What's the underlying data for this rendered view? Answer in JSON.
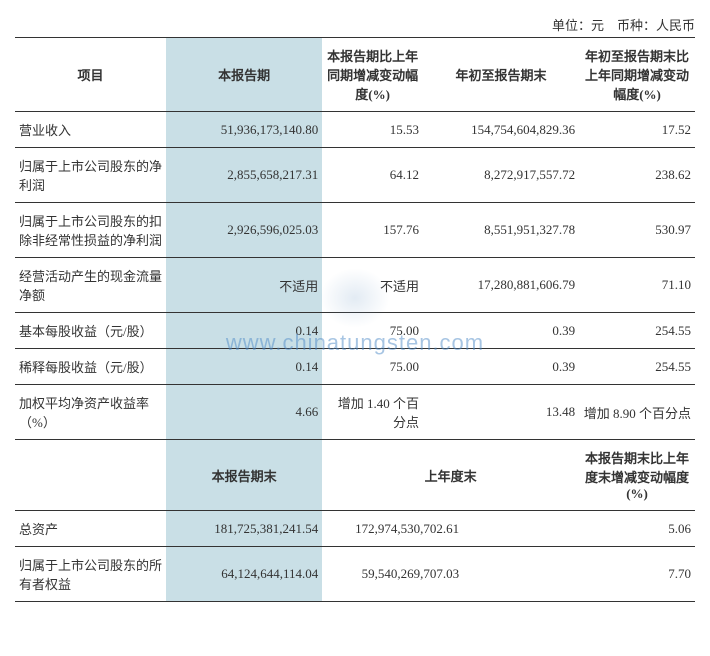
{
  "unit_line": "单位：元　币种：人民币",
  "section1": {
    "headers": {
      "col1": "项目",
      "col2": "本报告期",
      "col3": "本报告期比上年同期增减变动幅度(%)",
      "col4": "年初至报告期末",
      "col5": "年初至报告期末比上年同期增减变动幅度(%)"
    },
    "rows": [
      {
        "label": "营业收入",
        "c2": "51,936,173,140.80",
        "c3": "15.53",
        "c4": "154,754,604,829.36",
        "c5": "17.52"
      },
      {
        "label": "归属于上市公司股东的净利润",
        "c2": "2,855,658,217.31",
        "c3": "64.12",
        "c4": "8,272,917,557.72",
        "c5": "238.62"
      },
      {
        "label": "归属于上市公司股东的扣除非经常性损益的净利润",
        "c2": "2,926,596,025.03",
        "c3": "157.76",
        "c4": "8,551,951,327.78",
        "c5": "530.97"
      },
      {
        "label": "经营活动产生的现金流量净额",
        "c2": "不适用",
        "c3": "不适用",
        "c4": "17,280,881,606.79",
        "c5": "71.10"
      },
      {
        "label": "基本每股收益（元/股）",
        "c2": "0.14",
        "c3": "75.00",
        "c4": "0.39",
        "c5": "254.55"
      },
      {
        "label": "稀释每股收益（元/股）",
        "c2": "0.14",
        "c3": "75.00",
        "c4": "0.39",
        "c5": "254.55"
      },
      {
        "label": "加权平均净资产收益率（%）",
        "c2": "4.66",
        "c3": "增加 1.40 个百分点",
        "c4": "13.48",
        "c5": "增加 8.90 个百分点"
      }
    ]
  },
  "section2": {
    "headers": {
      "col1": "",
      "col2": "本报告期末",
      "col4": "上年度末",
      "col5": "本报告期末比上年度末增减变动幅度(%)"
    },
    "rows": [
      {
        "label": "总资产",
        "c2": "181,725,381,241.54",
        "c4": "172,974,530,702.61",
        "c5": "5.06"
      },
      {
        "label": "归属于上市公司股东的所有者权益",
        "c2": "64,124,644,114.04",
        "c4": "59,540,269,707.03",
        "c5": "7.70"
      }
    ]
  },
  "watermark": "www.chinatungsten.com"
}
